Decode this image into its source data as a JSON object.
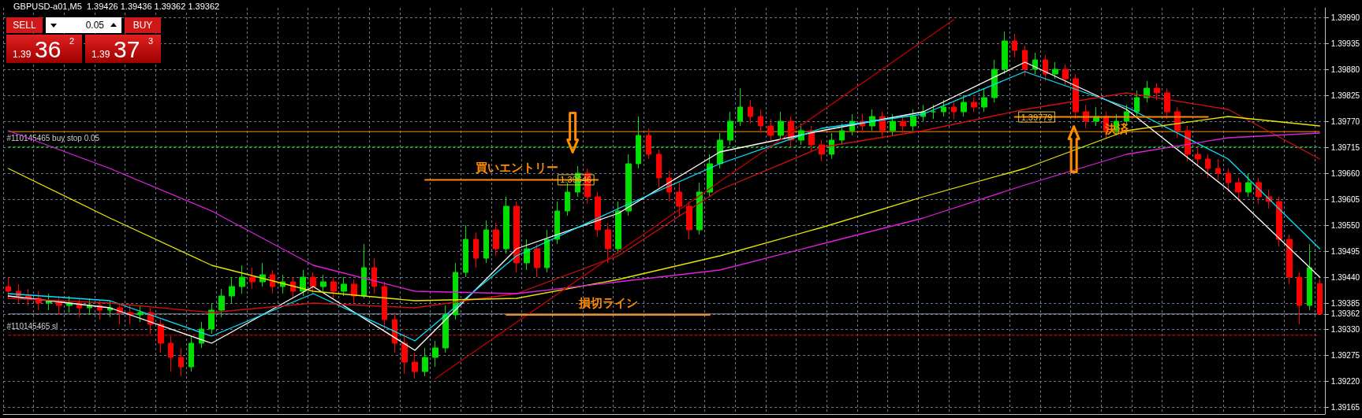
{
  "chart_data": {
    "type": "candlestick",
    "title": "GBPUSD-a01,M5  1.39426 1.39436 1.39362 1.39362",
    "categories": [
      null,
      null,
      null,
      null,
      null,
      null,
      null,
      null,
      null,
      null,
      null,
      null,
      null,
      null,
      null,
      null,
      null,
      null,
      null,
      null,
      null,
      null,
      null,
      null,
      null,
      null,
      null,
      null,
      null,
      null,
      null,
      null,
      null,
      null,
      null,
      null,
      null,
      null,
      null,
      null,
      null,
      null,
      null,
      null,
      null,
      null,
      null,
      null,
      null,
      null,
      null,
      null,
      null,
      null,
      null,
      null,
      null,
      null,
      null,
      null,
      null,
      null,
      null,
      null,
      null,
      null,
      null,
      null,
      null,
      null,
      null,
      null,
      null,
      null,
      null,
      null,
      null,
      null,
      null,
      null,
      null,
      null,
      null,
      null,
      null,
      null,
      null,
      null,
      null,
      null,
      null,
      null,
      null,
      null,
      null,
      null,
      null,
      null,
      null,
      null,
      null,
      null,
      null,
      null,
      null,
      null,
      null,
      null,
      null,
      null,
      null,
      null,
      null,
      null,
      null,
      null,
      null,
      null,
      null,
      null,
      null,
      null,
      null,
      null,
      null,
      null,
      null,
      null,
      null,
      null
    ],
    "ohlc": [
      [
        1.3942,
        1.3944,
        1.39395,
        1.3941
      ],
      [
        1.3941,
        1.39425,
        1.39385,
        1.394
      ],
      [
        1.394,
        1.39415,
        1.3938,
        1.39395
      ],
      [
        1.39395,
        1.3941,
        1.3937,
        1.39385
      ],
      [
        1.39385,
        1.39405,
        1.3937,
        1.3939
      ],
      [
        1.3939,
        1.394,
        1.3936,
        1.3938
      ],
      [
        1.3938,
        1.394,
        1.39365,
        1.39385
      ],
      [
        1.39385,
        1.39395,
        1.39355,
        1.39375
      ],
      [
        1.39375,
        1.39395,
        1.3936,
        1.3938
      ],
      [
        1.3938,
        1.3939,
        1.3935,
        1.3937
      ],
      [
        1.3937,
        1.3939,
        1.39355,
        1.39375
      ],
      [
        1.39375,
        1.39385,
        1.3934,
        1.39365
      ],
      [
        1.39365,
        1.3938,
        1.3934,
        1.3936
      ],
      [
        1.3936,
        1.3938,
        1.39345,
        1.39365
      ],
      [
        1.39365,
        1.39375,
        1.3932,
        1.3934
      ],
      [
        1.3934,
        1.3935,
        1.3928,
        1.393
      ],
      [
        1.393,
        1.39315,
        1.3924,
        1.3927
      ],
      [
        1.3927,
        1.3929,
        1.3923,
        1.3925
      ],
      [
        1.3925,
        1.39315,
        1.3924,
        1.393
      ],
      [
        1.393,
        1.39345,
        1.3929,
        1.3933
      ],
      [
        1.3933,
        1.39385,
        1.3932,
        1.3937
      ],
      [
        1.3937,
        1.39415,
        1.39355,
        1.394
      ],
      [
        1.394,
        1.3944,
        1.39385,
        1.3942
      ],
      [
        1.3942,
        1.39465,
        1.39405,
        1.3944
      ],
      [
        1.3944,
        1.3946,
        1.39415,
        1.3943
      ],
      [
        1.3943,
        1.3947,
        1.3942,
        1.39445
      ],
      [
        1.39445,
        1.39455,
        1.39405,
        1.3942
      ],
      [
        1.3942,
        1.39445,
        1.39405,
        1.3943
      ],
      [
        1.3943,
        1.3944,
        1.39395,
        1.3941
      ],
      [
        1.3941,
        1.39455,
        1.394,
        1.3944
      ],
      [
        1.3944,
        1.3945,
        1.39405,
        1.3942
      ],
      [
        1.3942,
        1.39445,
        1.3941,
        1.3943
      ],
      [
        1.3943,
        1.3944,
        1.39395,
        1.3941
      ],
      [
        1.3941,
        1.3944,
        1.394,
        1.39425
      ],
      [
        1.39425,
        1.39435,
        1.39385,
        1.394
      ],
      [
        1.394,
        1.3951,
        1.39395,
        1.3946
      ],
      [
        1.3946,
        1.3948,
        1.39405,
        1.3942
      ],
      [
        1.3942,
        1.3943,
        1.3933,
        1.3935
      ],
      [
        1.3935,
        1.39365,
        1.3928,
        1.393
      ],
      [
        1.393,
        1.3932,
        1.39235,
        1.3926
      ],
      [
        1.3926,
        1.3928,
        1.39225,
        1.3924
      ],
      [
        1.3924,
        1.3929,
        1.3923,
        1.3927
      ],
      [
        1.3927,
        1.39305,
        1.3925,
        1.3929
      ],
      [
        1.3929,
        1.3938,
        1.3928,
        1.3936
      ],
      [
        1.3936,
        1.3947,
        1.3935,
        1.3945
      ],
      [
        1.3945,
        1.3955,
        1.3944,
        1.3952
      ],
      [
        1.3952,
        1.39535,
        1.3946,
        1.3948
      ],
      [
        1.3948,
        1.3956,
        1.3947,
        1.3954
      ],
      [
        1.3954,
        1.39555,
        1.39485,
        1.395
      ],
      [
        1.395,
        1.3961,
        1.3949,
        1.3959
      ],
      [
        1.3959,
        1.396,
        1.3945,
        1.3947
      ],
      [
        1.3947,
        1.3952,
        1.39455,
        1.395
      ],
      [
        1.395,
        1.3951,
        1.3944,
        1.3946
      ],
      [
        1.3946,
        1.3954,
        1.3945,
        1.3952
      ],
      [
        1.3952,
        1.396,
        1.3951,
        1.3958
      ],
      [
        1.3958,
        1.3964,
        1.3957,
        1.3962
      ],
      [
        1.3962,
        1.39675,
        1.3961,
        1.3966
      ],
      [
        1.3966,
        1.3967,
        1.39595,
        1.3961
      ],
      [
        1.3961,
        1.3962,
        1.39525,
        1.3954
      ],
      [
        1.3954,
        1.39555,
        1.3947,
        1.395
      ],
      [
        1.395,
        1.396,
        1.3949,
        1.3958
      ],
      [
        1.3958,
        1.397,
        1.3957,
        1.3968
      ],
      [
        1.3968,
        1.3978,
        1.3967,
        1.3974
      ],
      [
        1.3974,
        1.39755,
        1.3969,
        1.397
      ],
      [
        1.397,
        1.3971,
        1.3963,
        1.3965
      ],
      [
        1.3965,
        1.39665,
        1.396,
        1.3962
      ],
      [
        1.3962,
        1.3964,
        1.3957,
        1.3959
      ],
      [
        1.3959,
        1.396,
        1.3952,
        1.3954
      ],
      [
        1.3954,
        1.3964,
        1.3953,
        1.3962
      ],
      [
        1.3962,
        1.397,
        1.3961,
        1.3968
      ],
      [
        1.3968,
        1.39745,
        1.3967,
        1.3973
      ],
      [
        1.3973,
        1.3979,
        1.3972,
        1.3977
      ],
      [
        1.3977,
        1.3984,
        1.3976,
        1.398
      ],
      [
        1.398,
        1.39815,
        1.39765,
        1.3978
      ],
      [
        1.3978,
        1.39795,
        1.39745,
        1.3976
      ],
      [
        1.3976,
        1.39775,
        1.39725,
        1.3974
      ],
      [
        1.3974,
        1.3979,
        1.3973,
        1.3977
      ],
      [
        1.3977,
        1.3978,
        1.39715,
        1.3973
      ],
      [
        1.3973,
        1.39765,
        1.3972,
        1.3975
      ],
      [
        1.3975,
        1.3976,
        1.39705,
        1.3972
      ],
      [
        1.3972,
        1.3973,
        1.39685,
        1.397
      ],
      [
        1.397,
        1.39745,
        1.3969,
        1.3973
      ],
      [
        1.3973,
        1.39765,
        1.3972,
        1.3975
      ],
      [
        1.3975,
        1.39785,
        1.3974,
        1.3977
      ],
      [
        1.3977,
        1.39785,
        1.39745,
        1.3976
      ],
      [
        1.3976,
        1.39795,
        1.3975,
        1.3978
      ],
      [
        1.3978,
        1.3979,
        1.39735,
        1.3975
      ],
      [
        1.3975,
        1.39785,
        1.3974,
        1.3977
      ],
      [
        1.3977,
        1.3978,
        1.39745,
        1.3976
      ],
      [
        1.3976,
        1.39795,
        1.3975,
        1.3978
      ],
      [
        1.3978,
        1.39805,
        1.3977,
        1.3979
      ],
      [
        1.3979,
        1.39805,
        1.39775,
        1.3979
      ],
      [
        1.3979,
        1.39815,
        1.3978,
        1.398
      ],
      [
        1.398,
        1.3981,
        1.39775,
        1.3979
      ],
      [
        1.3979,
        1.39825,
        1.3978,
        1.3981
      ],
      [
        1.3981,
        1.3982,
        1.3979,
        1.398
      ],
      [
        1.398,
        1.3984,
        1.3979,
        1.3982
      ],
      [
        1.3982,
        1.399,
        1.3981,
        1.3988
      ],
      [
        1.3988,
        1.3996,
        1.3987,
        1.3994
      ],
      [
        1.3994,
        1.39955,
        1.39905,
        1.3992
      ],
      [
        1.3992,
        1.3993,
        1.39865,
        1.3988
      ],
      [
        1.3988,
        1.39915,
        1.3987,
        1.399
      ],
      [
        1.399,
        1.3991,
        1.39855,
        1.3987
      ],
      [
        1.3987,
        1.39895,
        1.3986,
        1.3988
      ],
      [
        1.3988,
        1.3989,
        1.39845,
        1.3986
      ],
      [
        1.3986,
        1.3987,
        1.39775,
        1.3979
      ],
      [
        1.3979,
        1.39805,
        1.39755,
        1.3977
      ],
      [
        1.3977,
        1.398,
        1.3976,
        1.3978
      ],
      [
        1.3978,
        1.3979,
        1.39735,
        1.3975
      ],
      [
        1.3975,
        1.39785,
        1.3974,
        1.3977
      ],
      [
        1.3977,
        1.39805,
        1.3976,
        1.3979
      ],
      [
        1.3979,
        1.39835,
        1.3978,
        1.3982
      ],
      [
        1.3982,
        1.39855,
        1.3981,
        1.3984
      ],
      [
        1.3984,
        1.3985,
        1.39815,
        1.3983
      ],
      [
        1.3983,
        1.3984,
        1.39775,
        1.3979
      ],
      [
        1.3979,
        1.398,
        1.39735,
        1.3975
      ],
      [
        1.3975,
        1.3976,
        1.39685,
        1.397
      ],
      [
        1.397,
        1.39715,
        1.39675,
        1.3969
      ],
      [
        1.3969,
        1.397,
        1.3965,
        1.3967
      ],
      [
        1.3967,
        1.3969,
        1.39645,
        1.3966
      ],
      [
        1.3966,
        1.3967,
        1.3962,
        1.3964
      ],
      [
        1.3964,
        1.3965,
        1.396,
        1.3962
      ],
      [
        1.3962,
        1.3966,
        1.3961,
        1.3964
      ],
      [
        1.3964,
        1.3965,
        1.39595,
        1.3961
      ],
      [
        1.3961,
        1.39625,
        1.39585,
        1.396
      ],
      [
        1.396,
        1.3961,
        1.39505,
        1.3952
      ],
      [
        1.3952,
        1.3953,
        1.39425,
        1.3944
      ],
      [
        1.3944,
        1.3945,
        1.3934,
        1.3938
      ],
      [
        1.3938,
        1.3951,
        1.3937,
        1.3946
      ],
      [
        1.39426,
        1.39436,
        1.39362,
        1.39362
      ]
    ],
    "series": [
      {
        "type": "line",
        "color": "#ffffff",
        "values": [
          1.394,
          null,
          null,
          null,
          null,
          null,
          null,
          null,
          null,
          null,
          1.39375,
          null,
          null,
          null,
          null,
          null,
          null,
          null,
          null,
          null,
          1.393,
          null,
          null,
          null,
          null,
          null,
          null,
          null,
          null,
          null,
          1.3942,
          null,
          null,
          null,
          null,
          null,
          null,
          null,
          null,
          null,
          1.39285,
          null,
          null,
          null,
          null,
          null,
          null,
          null,
          null,
          null,
          1.395,
          null,
          null,
          null,
          null,
          null,
          null,
          null,
          null,
          null,
          1.39575,
          null,
          null,
          null,
          null,
          null,
          null,
          null,
          null,
          null,
          1.39705,
          null,
          null,
          null,
          null,
          null,
          null,
          null,
          null,
          null,
          1.3975,
          null,
          null,
          null,
          null,
          null,
          null,
          null,
          null,
          null,
          1.3979,
          null,
          null,
          null,
          null,
          null,
          null,
          null,
          null,
          null,
          1.39895,
          null,
          null,
          null,
          null,
          null,
          null,
          null,
          null,
          null,
          1.39795,
          null,
          null,
          null,
          null,
          null,
          null,
          null,
          null,
          null,
          1.39625,
          null,
          null,
          null,
          null,
          null,
          null,
          null,
          null,
          1.3944
        ]
      },
      {
        "type": "line",
        "color": "#00e5ff",
        "values": [
          1.39405,
          null,
          null,
          null,
          null,
          null,
          null,
          null,
          null,
          null,
          1.3939,
          null,
          null,
          null,
          null,
          null,
          null,
          null,
          null,
          null,
          1.39315,
          null,
          null,
          null,
          null,
          null,
          null,
          null,
          null,
          null,
          1.39405,
          null,
          null,
          null,
          null,
          null,
          null,
          null,
          null,
          null,
          1.39305,
          null,
          null,
          null,
          null,
          null,
          null,
          null,
          null,
          null,
          1.39485,
          null,
          null,
          null,
          null,
          null,
          null,
          null,
          null,
          null,
          1.39585,
          null,
          null,
          null,
          null,
          null,
          null,
          null,
          null,
          null,
          1.3968,
          null,
          null,
          null,
          null,
          null,
          null,
          null,
          null,
          null,
          1.39755,
          null,
          null,
          null,
          null,
          null,
          null,
          null,
          null,
          null,
          1.39785,
          null,
          null,
          null,
          null,
          null,
          null,
          null,
          null,
          null,
          1.39875,
          null,
          null,
          null,
          null,
          null,
          null,
          null,
          null,
          null,
          1.398,
          null,
          null,
          null,
          null,
          null,
          null,
          null,
          null,
          null,
          1.3969,
          null,
          null,
          null,
          null,
          null,
          null,
          null,
          null,
          1.395
        ]
      },
      {
        "type": "line",
        "color": "#d01010",
        "values": [
          1.39395,
          null,
          null,
          null,
          null,
          null,
          null,
          null,
          null,
          null,
          1.39385,
          null,
          null,
          null,
          null,
          null,
          null,
          null,
          null,
          null,
          1.39365,
          null,
          null,
          null,
          null,
          null,
          null,
          null,
          null,
          null,
          1.39385,
          null,
          null,
          null,
          null,
          null,
          null,
          null,
          null,
          null,
          1.39375,
          null,
          null,
          null,
          null,
          null,
          null,
          null,
          null,
          null,
          1.39405,
          null,
          null,
          null,
          null,
          null,
          null,
          null,
          null,
          null,
          1.39485,
          null,
          null,
          null,
          null,
          null,
          null,
          null,
          null,
          null,
          1.39625,
          null,
          null,
          null,
          null,
          null,
          null,
          null,
          null,
          null,
          1.39715,
          null,
          null,
          null,
          null,
          null,
          null,
          null,
          null,
          null,
          1.3975,
          null,
          null,
          null,
          null,
          null,
          null,
          null,
          null,
          null,
          1.39795,
          null,
          null,
          null,
          null,
          null,
          null,
          null,
          null,
          null,
          1.3983,
          null,
          null,
          null,
          null,
          null,
          null,
          null,
          null,
          null,
          1.39795,
          null,
          null,
          null,
          null,
          null,
          null,
          null,
          null,
          1.3969
        ]
      },
      {
        "type": "line",
        "color": "#e6e600",
        "values": [
          1.3967,
          null,
          null,
          null,
          null,
          null,
          null,
          null,
          null,
          null,
          1.39565,
          null,
          null,
          null,
          null,
          null,
          null,
          null,
          null,
          null,
          1.39465,
          null,
          null,
          null,
          null,
          null,
          null,
          null,
          null,
          null,
          1.3941,
          null,
          null,
          null,
          null,
          null,
          null,
          null,
          null,
          null,
          1.3939,
          null,
          null,
          null,
          null,
          null,
          null,
          null,
          null,
          null,
          1.39395,
          null,
          null,
          null,
          null,
          null,
          null,
          null,
          null,
          null,
          1.39435,
          null,
          null,
          null,
          null,
          null,
          null,
          null,
          null,
          null,
          1.39485,
          null,
          null,
          null,
          null,
          null,
          null,
          null,
          null,
          null,
          1.39545,
          null,
          null,
          null,
          null,
          null,
          null,
          null,
          null,
          null,
          1.3961,
          null,
          null,
          null,
          null,
          null,
          null,
          null,
          null,
          null,
          1.3967,
          null,
          null,
          null,
          null,
          null,
          null,
          null,
          null,
          null,
          1.3975,
          null,
          null,
          null,
          null,
          null,
          null,
          null,
          null,
          null,
          1.3978,
          null,
          null,
          null,
          null,
          null,
          null,
          null,
          null,
          1.3976
        ]
      },
      {
        "type": "line",
        "color": "#e020e0",
        "values": [
          1.3975,
          null,
          null,
          null,
          null,
          null,
          null,
          null,
          null,
          null,
          1.3967,
          null,
          null,
          null,
          null,
          null,
          null,
          null,
          null,
          null,
          1.3958,
          null,
          null,
          null,
          null,
          null,
          null,
          null,
          null,
          null,
          1.39465,
          null,
          null,
          null,
          null,
          null,
          null,
          null,
          null,
          null,
          1.3941,
          null,
          null,
          null,
          null,
          null,
          null,
          null,
          null,
          null,
          1.39405,
          null,
          null,
          null,
          null,
          null,
          null,
          null,
          null,
          null,
          1.3943,
          null,
          null,
          null,
          null,
          null,
          null,
          null,
          null,
          null,
          1.39455,
          null,
          null,
          null,
          null,
          null,
          null,
          null,
          null,
          null,
          1.3951,
          null,
          null,
          null,
          null,
          null,
          null,
          null,
          null,
          null,
          1.39565,
          null,
          null,
          null,
          null,
          null,
          null,
          null,
          null,
          null,
          1.39635,
          null,
          null,
          null,
          null,
          null,
          null,
          null,
          null,
          null,
          1.397,
          null,
          null,
          null,
          null,
          null,
          null,
          null,
          null,
          null,
          1.39735,
          null,
          null,
          null,
          null,
          null,
          null,
          null,
          null,
          1.39745
        ]
      },
      {
        "type": "line",
        "color": "#c00000",
        "values": [
          null,
          null,
          null,
          null,
          null,
          null,
          null,
          null,
          null,
          null,
          null,
          null,
          null,
          null,
          null,
          null,
          null,
          null,
          null,
          null,
          null,
          null,
          null,
          null,
          null,
          null,
          null,
          null,
          null,
          null,
          null,
          null,
          null,
          null,
          null,
          null,
          null,
          null,
          null,
          null,
          null,
          null,
          1.39225,
          null,
          null,
          null,
          null,
          null,
          null,
          null,
          null,
          null,
          null,
          null,
          null,
          null,
          null,
          null,
          null,
          null,
          null,
          null,
          null,
          null,
          null,
          null,
          null,
          null,
          null,
          null,
          null,
          null,
          null,
          null,
          null,
          null,
          null,
          null,
          null,
          null,
          null,
          null,
          null,
          null,
          null,
          null,
          null,
          null,
          null,
          null,
          null,
          null,
          null,
          1.39985,
          null,
          null,
          null,
          null,
          null,
          null,
          null,
          null,
          null,
          null,
          null,
          null,
          null,
          null,
          null,
          null,
          null,
          null,
          null,
          null,
          null,
          null,
          null,
          null,
          null,
          null,
          null,
          null,
          null,
          null,
          null,
          null,
          null,
          null,
          null,
          null
        ]
      },
      {
        "type": "line",
        "name": "買いエントリー",
        "color": "#ff8c00",
        "values": [
          null,
          null,
          null,
          null,
          null,
          null,
          null,
          null,
          null,
          null,
          null,
          null,
          null,
          null,
          null,
          null,
          null,
          null,
          null,
          null,
          null,
          null,
          null,
          null,
          null,
          null,
          null,
          null,
          null,
          null,
          null,
          null,
          null,
          null,
          null,
          null,
          null,
          null,
          null,
          null,
          null,
          1.39646,
          null,
          null,
          null,
          null,
          null,
          null,
          null,
          null,
          null,
          null,
          null,
          null,
          null,
          null,
          null,
          null,
          1.39646,
          null,
          null,
          null,
          null,
          null,
          null,
          null,
          null,
          null,
          null,
          null,
          null,
          null,
          null,
          null,
          null,
          null,
          null,
          null,
          null,
          null,
          null,
          null,
          null,
          null,
          null,
          null,
          null,
          null,
          null,
          null,
          null,
          null,
          null,
          null,
          null,
          null,
          null,
          null,
          null,
          null,
          null,
          null,
          null,
          null,
          null,
          null,
          null,
          null,
          null,
          null,
          null,
          null,
          null,
          null,
          null,
          null,
          null,
          null,
          null,
          null,
          null,
          null,
          null,
          null,
          null,
          null,
          null,
          null,
          null,
          null
        ],
        "value_labels": [
          null,
          null,
          null,
          null,
          null,
          null,
          null,
          null,
          null,
          null,
          null,
          null,
          null,
          null,
          null,
          null,
          null,
          null,
          null,
          null,
          null,
          null,
          null,
          null,
          null,
          null,
          null,
          null,
          null,
          null,
          null,
          null,
          null,
          null,
          null,
          null,
          null,
          null,
          null,
          null,
          null,
          null,
          null,
          null,
          null,
          null,
          null,
          null,
          null,
          null,
          null,
          null,
          null,
          null,
          null,
          null,
          null,
          null,
          "1.39646",
          null,
          null,
          null,
          null,
          null,
          null,
          null,
          null,
          null,
          null,
          null,
          null,
          null,
          null,
          null,
          null,
          null,
          null,
          null,
          null,
          null,
          null,
          null,
          null,
          null,
          null,
          null,
          null,
          null,
          null,
          null,
          null,
          null,
          null,
          null,
          null,
          null,
          null,
          null,
          null,
          null,
          null,
          null,
          null,
          null,
          null,
          null,
          null,
          null,
          null,
          null,
          null,
          null,
          null,
          null,
          null,
          null,
          null,
          null,
          null,
          null,
          null,
          null,
          null,
          null,
          null,
          null,
          null,
          null,
          null,
          null
        ]
      },
      {
        "type": "line",
        "name": "損切ライン",
        "color": "#ff8c00",
        "values": [
          null,
          null,
          null,
          null,
          null,
          null,
          null,
          null,
          null,
          null,
          null,
          null,
          null,
          null,
          null,
          null,
          null,
          null,
          null,
          null,
          null,
          null,
          null,
          null,
          null,
          null,
          null,
          null,
          null,
          null,
          null,
          null,
          null,
          null,
          null,
          null,
          null,
          null,
          null,
          null,
          null,
          null,
          null,
          null,
          null,
          null,
          null,
          null,
          null,
          1.3936,
          null,
          null,
          null,
          null,
          null,
          null,
          null,
          null,
          null,
          null,
          null,
          null,
          null,
          null,
          null,
          null,
          null,
          null,
          null,
          1.3936,
          null,
          null,
          null,
          null,
          null,
          null,
          null,
          null,
          null,
          null,
          null,
          null,
          null,
          null,
          null,
          null,
          null,
          null,
          null,
          null,
          null,
          null,
          null,
          null,
          null,
          null,
          null,
          null,
          null,
          null,
          null,
          null,
          null,
          null,
          null,
          null,
          null,
          null,
          null,
          null,
          null,
          null,
          null,
          null,
          null,
          null,
          null,
          null,
          null,
          null,
          null,
          null,
          null,
          null,
          null,
          null,
          null,
          null,
          null,
          null
        ]
      },
      {
        "type": "line",
        "name": "決済",
        "color": "#ff8c00",
        "values": [
          null,
          null,
          null,
          null,
          null,
          null,
          null,
          null,
          null,
          null,
          null,
          null,
          null,
          null,
          null,
          null,
          null,
          null,
          null,
          null,
          null,
          null,
          null,
          null,
          null,
          null,
          null,
          null,
          null,
          null,
          null,
          null,
          null,
          null,
          null,
          null,
          null,
          null,
          null,
          null,
          null,
          null,
          null,
          null,
          null,
          null,
          null,
          null,
          null,
          null,
          null,
          null,
          null,
          null,
          null,
          null,
          null,
          null,
          null,
          null,
          null,
          null,
          null,
          null,
          null,
          null,
          null,
          null,
          null,
          null,
          null,
          null,
          null,
          null,
          null,
          null,
          null,
          null,
          null,
          null,
          null,
          null,
          null,
          null,
          null,
          null,
          null,
          null,
          null,
          null,
          null,
          null,
          null,
          null,
          null,
          null,
          null,
          null,
          null,
          1.39779,
          null,
          null,
          null,
          null,
          null,
          null,
          null,
          null,
          null,
          null,
          null,
          null,
          null,
          null,
          null,
          null,
          null,
          null,
          1.39779,
          null,
          null,
          null,
          null,
          null,
          null,
          null,
          null,
          null,
          null,
          null
        ],
        "value_labels": [
          null,
          null,
          null,
          null,
          null,
          null,
          null,
          null,
          null,
          null,
          null,
          null,
          null,
          null,
          null,
          null,
          null,
          null,
          null,
          null,
          null,
          null,
          null,
          null,
          null,
          null,
          null,
          null,
          null,
          null,
          null,
          null,
          null,
          null,
          null,
          null,
          null,
          null,
          null,
          null,
          null,
          null,
          null,
          null,
          null,
          null,
          null,
          null,
          null,
          null,
          null,
          null,
          null,
          null,
          null,
          null,
          null,
          null,
          null,
          null,
          null,
          null,
          null,
          null,
          null,
          null,
          null,
          null,
          null,
          null,
          null,
          null,
          null,
          null,
          null,
          null,
          null,
          null,
          null,
          null,
          null,
          null,
          null,
          null,
          null,
          null,
          null,
          null,
          null,
          null,
          null,
          null,
          null,
          null,
          null,
          null,
          null,
          null,
          null,
          "1.39779",
          null,
          null,
          null,
          null,
          null,
          null,
          null,
          null,
          null,
          null,
          null,
          null,
          null,
          null,
          null,
          null,
          null,
          null,
          null,
          null,
          null,
          null,
          null,
          null,
          null,
          null,
          null,
          null,
          null,
          null
        ]
      }
    ],
    "ylim": [
      1.3915,
      1.4001
    ],
    "yticks": [
      {
        "value": 1.39165,
        "label": "1.39165"
      },
      {
        "value": 1.3922,
        "label": "1.39220"
      },
      {
        "value": 1.39275,
        "label": "1.39275"
      },
      {
        "value": 1.3933,
        "label": "1.39330"
      },
      {
        "value": 1.39362,
        "label": "1.39362"
      },
      {
        "value": 1.39385,
        "label": "1.39385"
      },
      {
        "value": 1.3944,
        "label": "1.39440"
      },
      {
        "value": 1.39495,
        "label": "1.39495"
      },
      {
        "value": 1.3955,
        "label": "1.39550"
      },
      {
        "value": 1.39605,
        "label": "1.39605"
      },
      {
        "value": 1.3966,
        "label": "1.39660"
      },
      {
        "value": 1.39715,
        "label": "1.39715"
      },
      {
        "value": 1.3977,
        "label": "1.39770"
      },
      {
        "value": 1.39825,
        "label": "1.39825"
      },
      {
        "value": 1.3988,
        "label": "1.39880"
      },
      {
        "value": 1.39935,
        "label": "1.39935"
      },
      {
        "value": 1.3999,
        "label": "1.39990"
      }
    ],
    "ref_lines": [
      {
        "axis": "y",
        "value": 1.39748,
        "color": "#ff8c00",
        "line_style": "solid"
      },
      {
        "axis": "y",
        "value": 1.39716,
        "label": "#110145465 buy stop 0.05",
        "color": "#00c000",
        "line_style": "dashed"
      },
      {
        "axis": "y",
        "value": 1.39362,
        "color": "#8a96a8",
        "line_style": "solid"
      },
      {
        "axis": "y",
        "value": 1.39317,
        "label": "#110145465 sl",
        "color": "#ff0000",
        "line_style": "dashed"
      }
    ],
    "annotations": [
      "SELL",
      "0.05",
      "BUY",
      "1.39",
      "36",
      "2",
      "1.39",
      "37",
      "3"
    ],
    "grid": true,
    "legend": false,
    "tick_labels": "y",
    "marker": "none"
  }
}
